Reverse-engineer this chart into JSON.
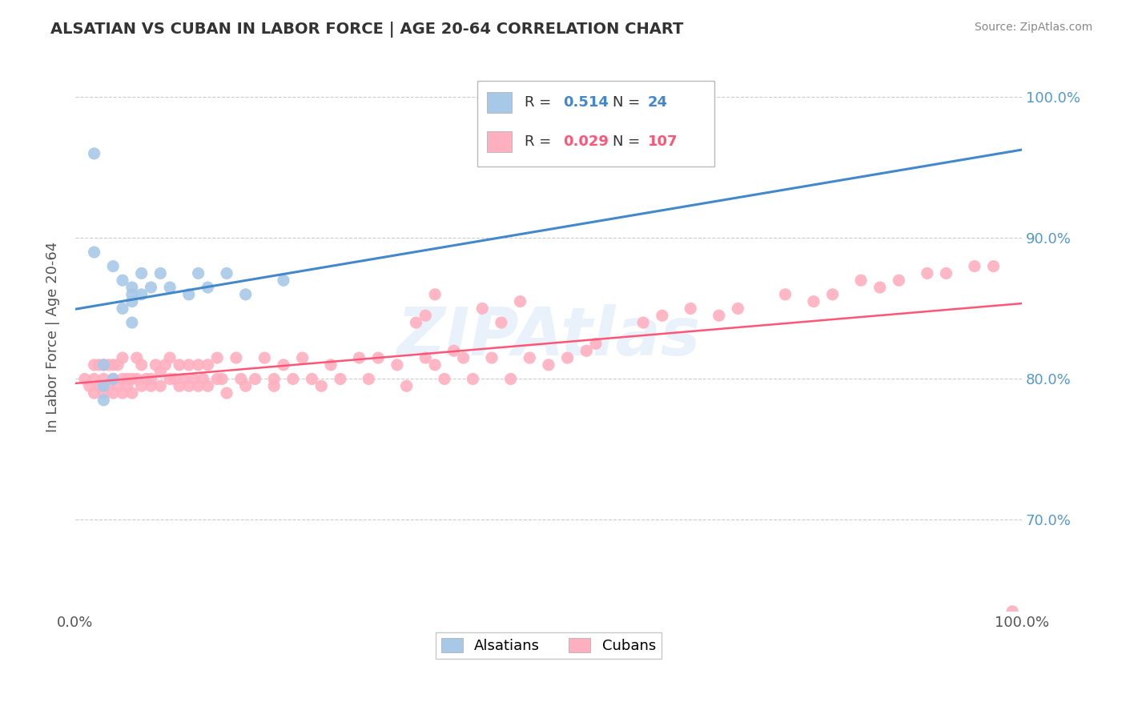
{
  "title": "ALSATIAN VS CUBAN IN LABOR FORCE | AGE 20-64 CORRELATION CHART",
  "source": "Source: ZipAtlas.com",
  "ylabel": "In Labor Force | Age 20-64",
  "xlim": [
    0.0,
    1.0
  ],
  "ylim": [
    0.635,
    1.025
  ],
  "yticks": [
    0.7,
    0.8,
    0.9,
    1.0
  ],
  "ytick_labels": [
    "70.0%",
    "80.0%",
    "90.0%",
    "100.0%"
  ],
  "blue_color": "#A8C8E8",
  "pink_color": "#FFB0C0",
  "blue_line_color": "#4488CC",
  "pink_line_color": "#FF5577",
  "bg_color": "#FFFFFF",
  "grid_color": "#CCCCCC",
  "title_color": "#333333",
  "right_axis_color": "#5599CC",
  "alsatian_x": [
    0.02,
    0.02,
    0.04,
    0.05,
    0.05,
    0.06,
    0.06,
    0.06,
    0.06,
    0.07,
    0.07,
    0.08,
    0.09,
    0.1,
    0.12,
    0.13,
    0.14,
    0.16,
    0.18,
    0.22,
    0.03,
    0.03,
    0.03,
    0.04
  ],
  "alsatian_y": [
    0.96,
    0.89,
    0.88,
    0.87,
    0.85,
    0.865,
    0.86,
    0.84,
    0.855,
    0.86,
    0.875,
    0.865,
    0.875,
    0.865,
    0.86,
    0.875,
    0.865,
    0.875,
    0.86,
    0.87,
    0.81,
    0.795,
    0.785,
    0.8
  ],
  "cuban_x": [
    0.01,
    0.015,
    0.02,
    0.02,
    0.02,
    0.025,
    0.025,
    0.03,
    0.03,
    0.03,
    0.035,
    0.035,
    0.04,
    0.04,
    0.04,
    0.045,
    0.045,
    0.05,
    0.05,
    0.05,
    0.055,
    0.055,
    0.06,
    0.06,
    0.065,
    0.065,
    0.07,
    0.07,
    0.075,
    0.08,
    0.08,
    0.085,
    0.09,
    0.09,
    0.095,
    0.1,
    0.1,
    0.105,
    0.11,
    0.11,
    0.115,
    0.12,
    0.12,
    0.125,
    0.13,
    0.13,
    0.135,
    0.14,
    0.14,
    0.15,
    0.15,
    0.155,
    0.16,
    0.17,
    0.175,
    0.18,
    0.19,
    0.2,
    0.21,
    0.21,
    0.22,
    0.23,
    0.24,
    0.25,
    0.26,
    0.27,
    0.28,
    0.3,
    0.31,
    0.32,
    0.34,
    0.35,
    0.37,
    0.38,
    0.39,
    0.41,
    0.42,
    0.44,
    0.46,
    0.48,
    0.5,
    0.52,
    0.54,
    0.36,
    0.37,
    0.38,
    0.4,
    0.43,
    0.45,
    0.47,
    0.55,
    0.6,
    0.62,
    0.65,
    0.68,
    0.7,
    0.75,
    0.78,
    0.8,
    0.83,
    0.85,
    0.87,
    0.9,
    0.92,
    0.95,
    0.97,
    0.99
  ],
  "cuban_y": [
    0.8,
    0.795,
    0.79,
    0.81,
    0.8,
    0.795,
    0.81,
    0.79,
    0.8,
    0.81,
    0.795,
    0.81,
    0.79,
    0.8,
    0.81,
    0.795,
    0.81,
    0.79,
    0.8,
    0.815,
    0.795,
    0.8,
    0.79,
    0.8,
    0.8,
    0.815,
    0.795,
    0.81,
    0.8,
    0.795,
    0.8,
    0.81,
    0.795,
    0.805,
    0.81,
    0.8,
    0.815,
    0.8,
    0.795,
    0.81,
    0.8,
    0.795,
    0.81,
    0.8,
    0.795,
    0.81,
    0.8,
    0.795,
    0.81,
    0.8,
    0.815,
    0.8,
    0.79,
    0.815,
    0.8,
    0.795,
    0.8,
    0.815,
    0.8,
    0.795,
    0.81,
    0.8,
    0.815,
    0.8,
    0.795,
    0.81,
    0.8,
    0.815,
    0.8,
    0.815,
    0.81,
    0.795,
    0.815,
    0.81,
    0.8,
    0.815,
    0.8,
    0.815,
    0.8,
    0.815,
    0.81,
    0.815,
    0.82,
    0.84,
    0.845,
    0.86,
    0.82,
    0.85,
    0.84,
    0.855,
    0.825,
    0.84,
    0.845,
    0.85,
    0.845,
    0.85,
    0.86,
    0.855,
    0.86,
    0.87,
    0.865,
    0.87,
    0.875,
    0.875,
    0.88,
    0.88,
    0.635
  ],
  "watermark_text": "ZIPAtlas",
  "legend_R1_val": "0.514",
  "legend_N1_val": "24",
  "legend_R2_val": "0.029",
  "legend_N2_val": "107"
}
